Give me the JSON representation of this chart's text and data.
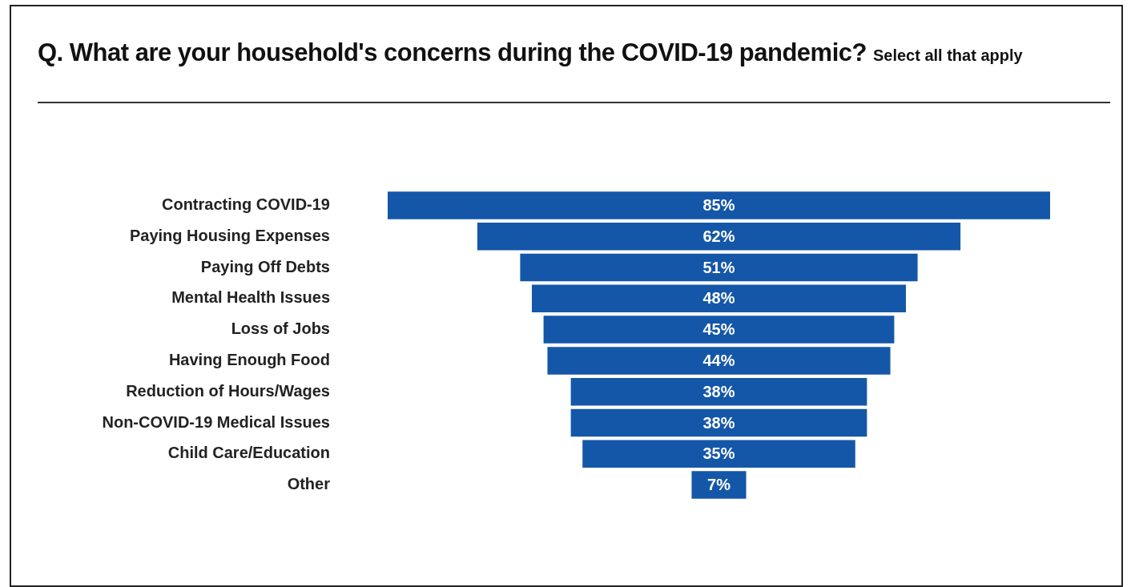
{
  "chart_data": {
    "type": "other",
    "title": "Q. What are your household's concerns during the COVID-19 pandemic?",
    "subtitle": "Select all that apply",
    "categories": [
      "Contracting COVID-19",
      "Paying Housing Expenses",
      "Paying Off Debts",
      "Mental Health Issues",
      "Loss of Jobs",
      "Having Enough Food",
      "Reduction of Hours/Wages",
      "Non-COVID-19 Medical Issues",
      "Child Care/Education",
      "Other"
    ],
    "values": [
      85,
      62,
      51,
      48,
      45,
      44,
      38,
      38,
      35,
      7
    ],
    "value_labels": [
      "85%",
      "62%",
      "51%",
      "48%",
      "45%",
      "44%",
      "38%",
      "38%",
      "35%",
      "7%"
    ],
    "color": "#1457a8"
  }
}
